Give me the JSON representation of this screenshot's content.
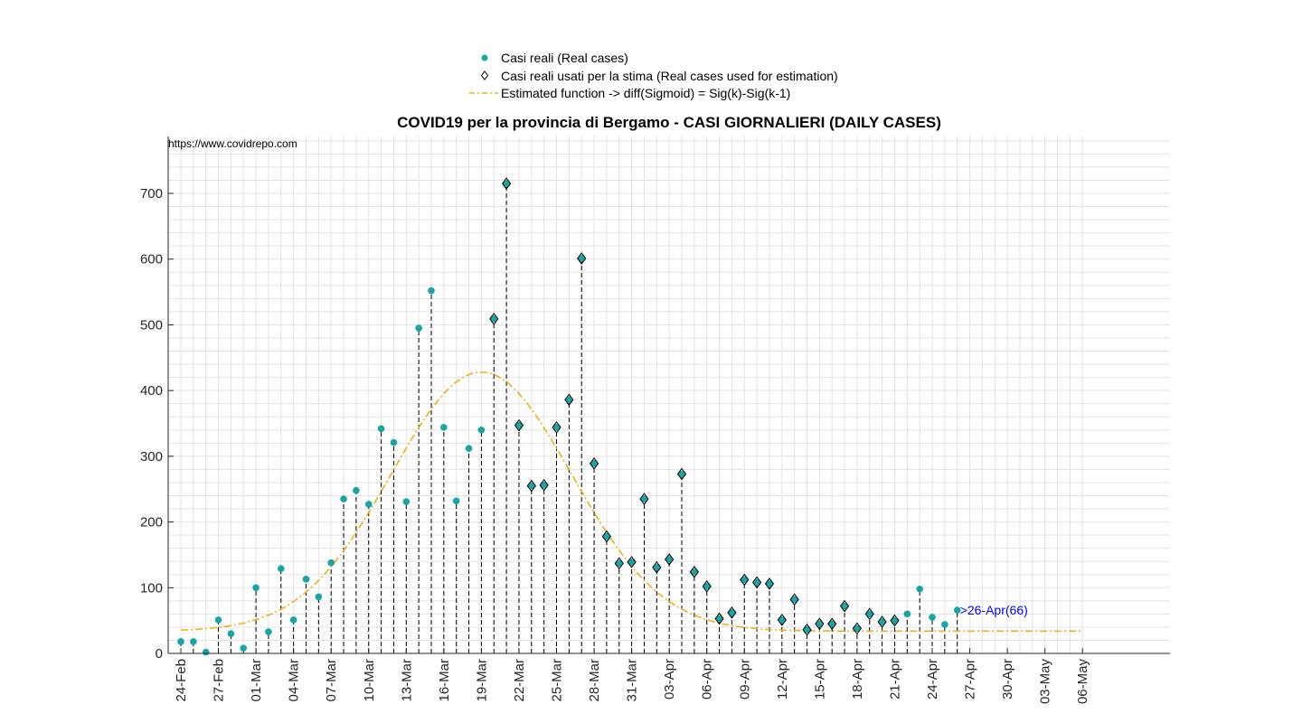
{
  "chart_data": {
    "type": "scatter",
    "title": "COVID19 per la provincia di Bergamo - CASI GIORNALIERI (DAILY CASES)",
    "source_label": "https://www.covidrepo.com",
    "annotation": ">26-Apr(66)",
    "ylim": [
      0,
      785
    ],
    "yticks": [
      0,
      100,
      200,
      300,
      400,
      500,
      600,
      700
    ],
    "x_day_range": [
      0,
      72
    ],
    "x_tick_labels": [
      "24-Feb",
      "27-Feb",
      "01-Mar",
      "04-Mar",
      "07-Mar",
      "10-Mar",
      "13-Mar",
      "16-Mar",
      "19-Mar",
      "22-Mar",
      "25-Mar",
      "28-Mar",
      "31-Mar",
      "03-Apr",
      "06-Apr",
      "09-Apr",
      "12-Apr",
      "15-Apr",
      "18-Apr",
      "21-Apr",
      "24-Apr",
      "27-Apr",
      "30-Apr",
      "03-May",
      "06-May"
    ],
    "grid": true,
    "legend_position": "top-center",
    "colors": {
      "marker": "#17a5a5",
      "fit": "#edb120",
      "annotation": "#0000ff",
      "grid": "#e3e3e3"
    },
    "legend": [
      {
        "label": "Casi reali (Real cases)",
        "icon": "filled-circle"
      },
      {
        "label": "Casi reali usati per la stima (Real cases used for estimation)",
        "icon": "diamond"
      },
      {
        "label": "Estimated function -> diff(Sigmoid) = Sig(k)-Sig(k-1)",
        "icon": "dash-dot-line"
      }
    ],
    "series": [
      {
        "name": "Casi reali (Real cases)",
        "marker": "circle",
        "dates": [
          "24-Feb",
          "25-Feb",
          "26-Feb",
          "27-Feb",
          "28-Feb",
          "29-Feb",
          "01-Mar",
          "02-Mar",
          "03-Mar",
          "04-Mar",
          "05-Mar",
          "06-Mar",
          "07-Mar",
          "08-Mar",
          "09-Mar",
          "10-Mar",
          "11-Mar",
          "12-Mar",
          "13-Mar",
          "14-Mar",
          "15-Mar",
          "16-Mar",
          "17-Mar",
          "18-Mar",
          "19-Mar",
          "20-Mar",
          "21-Mar",
          "22-Mar",
          "23-Mar",
          "24-Mar",
          "25-Mar",
          "26-Mar",
          "27-Mar",
          "28-Mar",
          "29-Mar",
          "30-Mar",
          "31-Mar",
          "01-Apr",
          "02-Apr",
          "03-Apr",
          "04-Apr",
          "05-Apr",
          "06-Apr",
          "07-Apr",
          "08-Apr",
          "09-Apr",
          "10-Apr",
          "11-Apr",
          "12-Apr",
          "13-Apr",
          "14-Apr",
          "15-Apr",
          "16-Apr",
          "17-Apr",
          "18-Apr",
          "19-Apr",
          "20-Apr",
          "21-Apr",
          "22-Apr",
          "23-Apr",
          "24-Apr",
          "25-Apr",
          "26-Apr"
        ],
        "values": [
          18,
          18,
          2,
          51,
          30,
          8,
          100,
          33,
          129,
          51,
          113,
          86,
          138,
          235,
          248,
          227,
          342,
          321,
          231,
          495,
          552,
          344,
          232,
          312,
          340,
          509,
          715,
          347,
          255,
          256,
          344,
          386,
          601,
          289,
          178,
          137,
          139,
          235,
          131,
          143,
          273,
          124,
          102,
          53,
          62,
          112,
          108,
          106,
          51,
          82,
          36,
          45,
          45,
          72,
          38,
          60,
          48,
          50,
          60,
          98,
          55,
          44,
          66
        ]
      },
      {
        "name": "Casi reali usati per la stima (Real cases used for estimation)",
        "marker": "diamond",
        "dates": [
          "20-Mar",
          "21-Mar",
          "22-Mar",
          "23-Mar",
          "24-Mar",
          "25-Mar",
          "26-Mar",
          "27-Mar",
          "28-Mar",
          "29-Mar",
          "30-Mar",
          "31-Mar",
          "01-Apr",
          "02-Apr",
          "03-Apr",
          "04-Apr",
          "05-Apr",
          "06-Apr",
          "07-Apr",
          "08-Apr",
          "09-Apr",
          "10-Apr",
          "11-Apr",
          "12-Apr",
          "13-Apr",
          "14-Apr",
          "15-Apr",
          "16-Apr",
          "17-Apr",
          "18-Apr",
          "19-Apr",
          "20-Apr",
          "21-Apr"
        ],
        "values": [
          509,
          715,
          347,
          255,
          256,
          344,
          386,
          601,
          289,
          178,
          137,
          139,
          235,
          131,
          143,
          273,
          124,
          102,
          53,
          62,
          112,
          108,
          106,
          51,
          82,
          36,
          45,
          45,
          72,
          38,
          60,
          48,
          50
        ]
      },
      {
        "name": "Estimated function -> diff(Sigmoid) = Sig(k)-Sig(k-1)",
        "type": "line",
        "style": "dash-dot",
        "peak_date": "19-Mar",
        "peak_value": 428,
        "baseline": 34,
        "sigma_days": 7.2
      }
    ]
  }
}
